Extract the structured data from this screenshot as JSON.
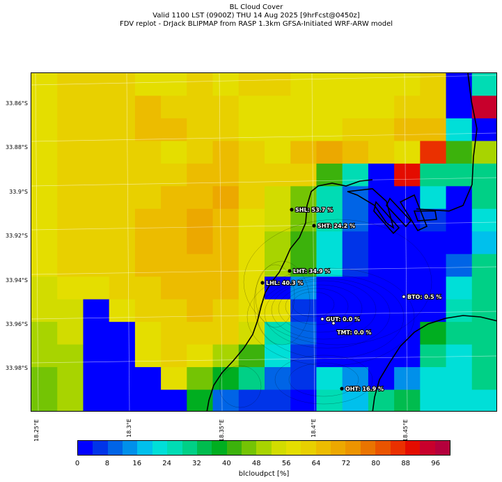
{
  "title": {
    "line1": "BL Cloud Cover",
    "line2": "Valid 1100 LST (0900Z) THU 14 Aug 2025 [9hrFcst@0450z]",
    "line3": "FDV replot - DrJack BLIPMAP from RASP 1.3km GFSA-Initiated WRF-ARW model"
  },
  "chart_data": {
    "type": "heatmap",
    "variable": "blcloudpct",
    "units": "%",
    "colorbar_label": "blcloudpct [%]",
    "colorbar_ticks": [
      "0",
      "8",
      "16",
      "24",
      "32",
      "40",
      "48",
      "56",
      "64",
      "72",
      "80",
      "88",
      "96"
    ],
    "colorbar_range": [
      0,
      100
    ],
    "colorbar_step": 4,
    "colormap": [
      "#0000ff",
      "#0034e8",
      "#0064e6",
      "#0090ea",
      "#00c0ec",
      "#00dfd8",
      "#00dcb4",
      "#00d086",
      "#00bc4e",
      "#00ae20",
      "#3cb20c",
      "#74c404",
      "#a8d400",
      "#d2dc00",
      "#e4de00",
      "#e8d000",
      "#ecbc00",
      "#eca800",
      "#ec9400",
      "#ea7400",
      "#ea5400",
      "#ea3000",
      "#e40c00",
      "#c8002c",
      "#b4003c"
    ],
    "lat_labels": [
      "33.86°S",
      "33.88°S",
      "33.9°S",
      "33.92°S",
      "33.94°S",
      "33.96°S",
      "33.98°S"
    ],
    "lon_labels": [
      "18.25°E",
      "18.3°E",
      "18.35°E",
      "18.4°E",
      "18.45°E"
    ],
    "grid_rows": 15,
    "grid_cols": 18,
    "grid": [
      [
        58,
        60,
        60,
        60,
        58,
        58,
        60,
        58,
        60,
        60,
        58,
        58,
        58,
        58,
        58,
        60,
        0,
        24
      ],
      [
        58,
        60,
        60,
        62,
        64,
        62,
        60,
        60,
        58,
        58,
        58,
        58,
        58,
        58,
        62,
        62,
        0,
        94
      ],
      [
        58,
        60,
        60,
        62,
        64,
        66,
        62,
        60,
        58,
        58,
        58,
        58,
        60,
        62,
        64,
        64,
        22,
        2
      ],
      [
        58,
        60,
        60,
        62,
        62,
        58,
        62,
        64,
        62,
        58,
        64,
        68,
        64,
        62,
        56,
        86,
        40,
        48
      ],
      [
        58,
        60,
        60,
        62,
        62,
        62,
        64,
        64,
        62,
        62,
        62,
        40,
        24,
        2,
        90,
        30,
        30,
        30
      ],
      [
        58,
        60,
        60,
        62,
        62,
        64,
        66,
        68,
        60,
        52,
        44,
        24,
        8,
        2,
        2,
        20,
        2,
        30
      ],
      [
        58,
        60,
        60,
        62,
        64,
        66,
        68,
        66,
        58,
        52,
        44,
        24,
        8,
        2,
        2,
        4,
        2,
        20
      ],
      [
        58,
        60,
        60,
        62,
        64,
        66,
        68,
        66,
        56,
        48,
        42,
        20,
        4,
        2,
        2,
        2,
        2,
        16
      ],
      [
        58,
        60,
        60,
        62,
        64,
        66,
        66,
        64,
        58,
        50,
        40,
        20,
        4,
        2,
        2,
        2,
        8,
        28
      ],
      [
        54,
        56,
        58,
        60,
        62,
        64,
        66,
        64,
        58,
        2,
        14,
        2,
        2,
        2,
        2,
        2,
        20,
        28
      ],
      [
        52,
        54,
        2,
        58,
        60,
        62,
        64,
        62,
        58,
        56,
        6,
        2,
        2,
        2,
        2,
        2,
        24,
        28
      ],
      [
        50,
        52,
        2,
        2,
        58,
        60,
        62,
        60,
        52,
        26,
        10,
        2,
        2,
        2,
        2,
        36,
        28,
        28
      ],
      [
        48,
        50,
        2,
        2,
        58,
        60,
        56,
        48,
        42,
        20,
        4,
        2,
        2,
        2,
        2,
        28,
        22,
        28
      ],
      [
        46,
        48,
        2,
        2,
        2,
        56,
        46,
        36,
        30,
        10,
        4,
        22,
        14,
        2,
        14,
        20,
        22,
        28
      ],
      [
        44,
        48,
        2,
        2,
        2,
        2,
        38,
        8,
        6,
        6,
        2,
        24,
        18,
        30,
        34,
        22,
        22,
        22
      ]
    ],
    "stations": [
      {
        "code": "SHL",
        "value": "53.7",
        "text": "SHL: 53.7 %"
      },
      {
        "code": "SHT",
        "value": "24.2",
        "text": "SHT: 24.2 %"
      },
      {
        "code": "LHT",
        "value": "34.9",
        "text": "LHT: 34.9 %"
      },
      {
        "code": "LHL",
        "value": "40.3",
        "text": "LHL: 40.3 %"
      },
      {
        "code": "BTO",
        "value": "0.5",
        "text": "BTO: 0.5 %"
      },
      {
        "code": "GUT",
        "value": "0.0",
        "text": "GUT: 0.0 %"
      },
      {
        "code": "TMT",
        "value": "0.0",
        "text": "TMT: 0.0 %"
      },
      {
        "code": "OHT",
        "value": "16.9",
        "text": "OHT: 16.9 %"
      }
    ]
  }
}
